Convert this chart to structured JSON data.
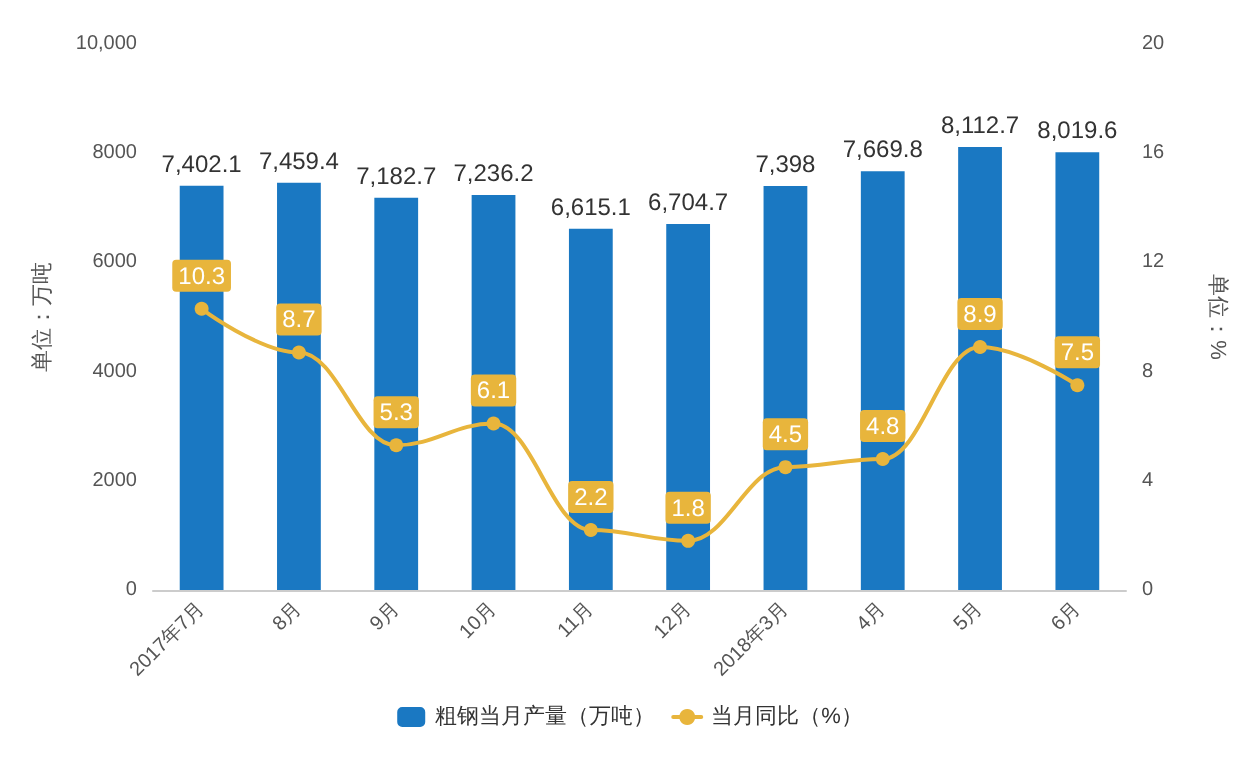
{
  "chart_data": {
    "type": "bar",
    "ylabel": "单位：万吨",
    "y2label": "单位：%",
    "categories": [
      "2017年7月",
      "8月",
      "9月",
      "10月",
      "11月",
      "12月",
      "2018年3月",
      "4月",
      "5月",
      "6月"
    ],
    "series": [
      {
        "name": "粗钢当月产量（万吨）",
        "color": "#1a78c2",
        "values": [
          7402.1,
          7459.4,
          7182.7,
          7236.2,
          6615.1,
          6704.7,
          7398,
          7669.8,
          8112.7,
          8019.6
        ],
        "value_labels": [
          "7,402.1",
          "7,459.4",
          "7,182.7",
          "7,236.2",
          "6,615.1",
          "6,704.7",
          "7,398",
          "7,669.8",
          "8,112.7",
          "8,019.6"
        ]
      },
      {
        "name": "当月同比（%）",
        "type": "line",
        "axis": "y2",
        "color": "#e8b53c",
        "values": [
          10.3,
          8.7,
          5.3,
          6.1,
          2.2,
          1.8,
          4.5,
          4.8,
          8.9,
          7.5
        ],
        "value_labels": [
          "10.3",
          "8.7",
          "5.3",
          "6.1",
          "2.2",
          "1.8",
          "4.5",
          "4.8",
          "8.9",
          "7.5"
        ]
      }
    ],
    "ylim": [
      0,
      10000
    ],
    "yticks": [
      0,
      2000,
      4000,
      6000,
      8000,
      {
        "value": 10000,
        "label": "10,000"
      }
    ],
    "y2lim": [
      0,
      20
    ],
    "y2ticks": [
      0,
      4,
      8,
      12,
      16,
      20
    ],
    "legend": "bottom",
    "marker": "circle",
    "line_style": "solid"
  }
}
